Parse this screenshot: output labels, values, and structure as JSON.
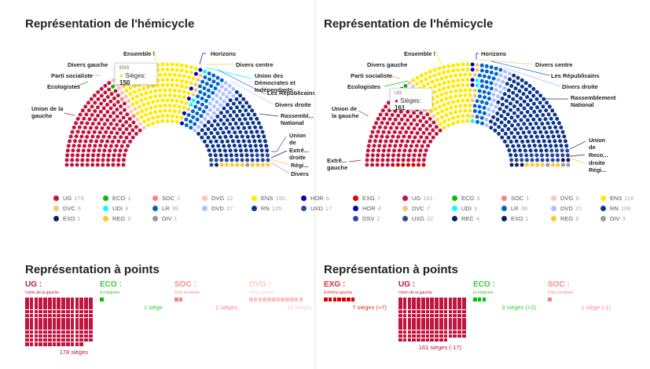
{
  "left": {
    "title": "Représentation de l'hémicycle",
    "tooltip": {
      "party": "ENS",
      "label": "Sièges:",
      "value": "150"
    },
    "labels": [
      "Ensemble !",
      "Divers gauche",
      "Parti socialiste",
      "Ecologistes",
      "Union de la gauche",
      "Horizons",
      "Divers centre",
      "Union des Démocrates et Indépendants",
      "Les Républicains",
      "Divers droite",
      "Rassembl... National",
      "Union de",
      "Extrê... droite",
      "Régi...",
      "Divers"
    ],
    "parties": [
      {
        "code": "UG",
        "seats": 178,
        "color": "#c0153f"
      },
      {
        "code": "ECO",
        "seats": 1,
        "color": "#00c000"
      },
      {
        "code": "SOC",
        "seats": 2,
        "color": "#ff8080"
      },
      {
        "code": "DVG",
        "seats": 12,
        "color": "#ffc0c0"
      },
      {
        "code": "ENS",
        "seats": 150,
        "color": "#ffeb00"
      },
      {
        "code": "HOR",
        "seats": 6,
        "color": "#0001b8"
      },
      {
        "code": "DVC",
        "seats": 6,
        "color": "#fac577"
      },
      {
        "code": "UDI",
        "seats": 3,
        "color": "#00ffff"
      },
      {
        "code": "LR",
        "seats": 39,
        "color": "#0066cc"
      },
      {
        "code": "DVD",
        "seats": 27,
        "color": "#adc1fd"
      },
      {
        "code": "RN",
        "seats": 125,
        "color": "#0d378a"
      },
      {
        "code": "UXD",
        "seats": 17,
        "color": "#2a4a9a"
      },
      {
        "code": "EXD",
        "seats": 1,
        "color": "#0b2357"
      },
      {
        "code": "REG",
        "seats": 9,
        "color": "#ffc72c"
      },
      {
        "code": "DIV",
        "seats": 1,
        "color": "#999999"
      }
    ],
    "points_title": "Représentation à points",
    "points": [
      {
        "code": "UG :",
        "name": "Union de la gauche",
        "seats": 178,
        "count": "178 sièges",
        "color": "#c0153f",
        "text": "#c0153f"
      },
      {
        "code": "ECO :",
        "name": "Ecologistes",
        "seats": 1,
        "count": "1 siège",
        "color": "#00c000",
        "text": "#3cc83c"
      },
      {
        "code": "SOC :",
        "name": "Parti socialiste",
        "seats": 2,
        "count": "2 sièges",
        "color": "#ff8080",
        "text": "#ff8a8a"
      },
      {
        "code": "DVG :",
        "name": "Divers gauche",
        "seats": 12,
        "count": "12 sièges",
        "color": "#ffc0c0",
        "text": "#ffc8c8"
      }
    ]
  },
  "right": {
    "title": "Représentation de l'hémicycle",
    "tooltip": {
      "party": "UG",
      "label": "Sièges:",
      "value": "161"
    },
    "labels": [
      "Ensemble !",
      "Divers gauche",
      "Parti socialiste",
      "Ecologistes",
      "Union de la gauche",
      "Extrê... gauche",
      "Horizons",
      "Divers centre",
      "Les Républicains",
      "Divers droite",
      "Rassemblement National",
      "Union de",
      "Reco...",
      "droite Régi..."
    ],
    "parties": [
      {
        "code": "EXG",
        "seats": 7,
        "color": "#dd0000"
      },
      {
        "code": "UG",
        "seats": 161,
        "color": "#c0153f"
      },
      {
        "code": "ECO",
        "seats": 3,
        "color": "#00c000"
      },
      {
        "code": "SOC",
        "seats": 1,
        "color": "#ff8080"
      },
      {
        "code": "DVG",
        "seats": 9,
        "color": "#ffc0c0"
      },
      {
        "code": "ENS",
        "seats": 116,
        "color": "#ffeb00"
      },
      {
        "code": "HOR",
        "seats": 4,
        "color": "#0001b8"
      },
      {
        "code": "DVC",
        "seats": 7,
        "color": "#fac577"
      },
      {
        "code": "UDI",
        "seats": 3,
        "color": "#00ffff"
      },
      {
        "code": "LR",
        "seats": 38,
        "color": "#0066cc"
      },
      {
        "code": "DVD",
        "seats": 21,
        "color": "#adc1fd"
      },
      {
        "code": "RN",
        "seats": 169,
        "color": "#0d378a"
      },
      {
        "code": "DSV",
        "seats": 2,
        "color": "#2a4a9a"
      },
      {
        "code": "UXD",
        "seats": 22,
        "color": "#2a4a9a"
      },
      {
        "code": "REC",
        "seats": 4,
        "color": "#0b2357"
      },
      {
        "code": "EXD",
        "seats": 1,
        "color": "#0b2357"
      },
      {
        "code": "REG",
        "seats": 6,
        "color": "#ffc72c"
      },
      {
        "code": "DIV",
        "seats": 3,
        "color": "#999999"
      }
    ],
    "points_title": "Représentation à points",
    "points": [
      {
        "code": "EXG :",
        "name": "Extrême gauche",
        "seats": 7,
        "count": "7 sièges (+7)",
        "color": "#dd0000",
        "text": "#e03030"
      },
      {
        "code": "UG :",
        "name": "Union de la gauche",
        "seats": 161,
        "count": "161 sièges (-17)",
        "color": "#c0153f",
        "text": "#c0153f"
      },
      {
        "code": "ECO :",
        "name": "Ecologistes",
        "seats": 3,
        "count": "3 sièges (+2)",
        "color": "#00c000",
        "text": "#3cc83c"
      },
      {
        "code": "SOC :",
        "name": "Parti socialiste",
        "seats": 1,
        "count": "1 siège (-1)",
        "color": "#ff8080",
        "text": "#ff8a8a"
      }
    ]
  }
}
